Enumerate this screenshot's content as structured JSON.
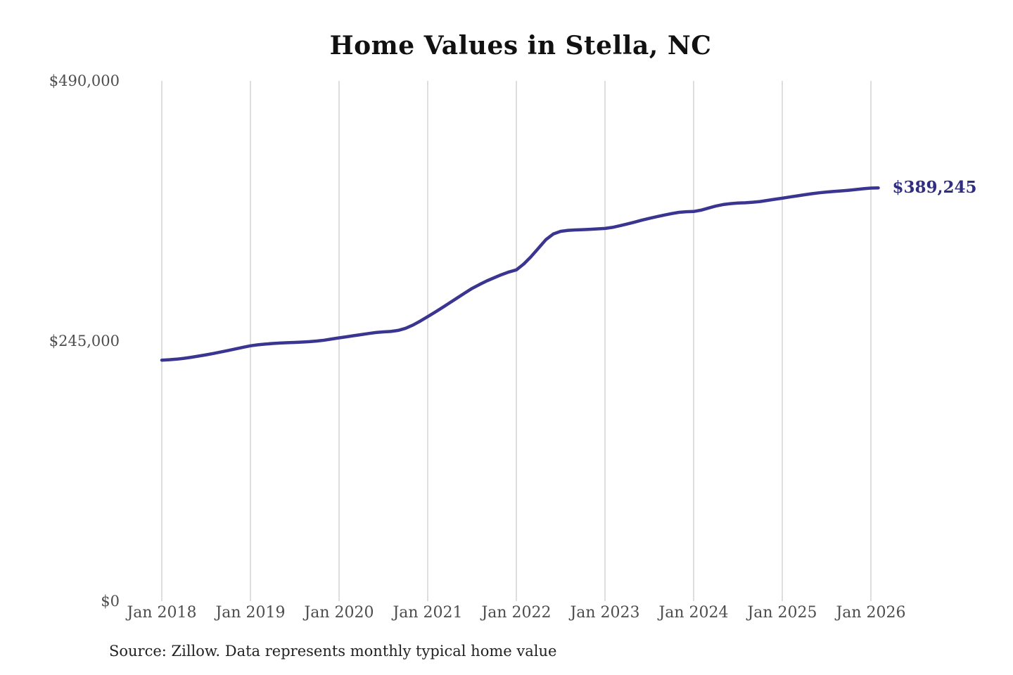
{
  "page": {
    "source": "Source: Zillow. Data represents monthly typical home value"
  },
  "chart_data": {
    "type": "line",
    "title": "Home Values in Stella, NC",
    "xlabel": "",
    "ylabel": "",
    "ylim": [
      0,
      490000
    ],
    "grid": "vertical-only",
    "legend": "none",
    "line_color": "#3a3590",
    "end_label_color": "#312d80",
    "grid_color": "#cccccc",
    "tick_label_color": "#4d4d4d",
    "x_ticks": [
      "Jan 2018",
      "Jan 2019",
      "Jan 2020",
      "Jan 2021",
      "Jan 2022",
      "Jan 2023",
      "Jan 2024",
      "Jan 2025",
      "Jan 2026"
    ],
    "y_ticks": [
      {
        "label": "$490,000",
        "value": 490000
      },
      {
        "label": "$245,000",
        "value": 245000
      },
      {
        "label": "$0",
        "value": 0
      }
    ],
    "end_label": "$389,245",
    "end_value": 389245,
    "series": [
      {
        "name": "Monthly typical home value",
        "interval": "monthly",
        "x_start": "2018-01",
        "x_end": "2026-02",
        "values": [
          227000,
          227400,
          227900,
          228700,
          229700,
          230800,
          232000,
          233300,
          234700,
          236100,
          237600,
          239100,
          240500,
          241400,
          242100,
          242700,
          243100,
          243400,
          243700,
          244000,
          244400,
          245000,
          245800,
          246900,
          248000,
          249000,
          250000,
          251000,
          252100,
          253000,
          253600,
          254000,
          255000,
          257000,
          260000,
          263800,
          268000,
          272200,
          276600,
          281100,
          285600,
          290100,
          294500,
          298200,
          301600,
          304600,
          307500,
          310000,
          312000,
          317500,
          324500,
          332500,
          340500,
          345800,
          348300,
          349200,
          349600,
          349900,
          350200,
          350600,
          351000,
          352000,
          353500,
          355200,
          357000,
          358800,
          360500,
          362100,
          363600,
          365000,
          366200,
          366800,
          367000,
          368200,
          370200,
          372100,
          373500,
          374400,
          374900,
          375200,
          375700,
          376400,
          377400,
          378500,
          379500,
          380600,
          381700,
          382700,
          383700,
          384600,
          385300,
          385900,
          386400,
          387000,
          387700,
          388400,
          389000,
          389245
        ]
      }
    ]
  }
}
